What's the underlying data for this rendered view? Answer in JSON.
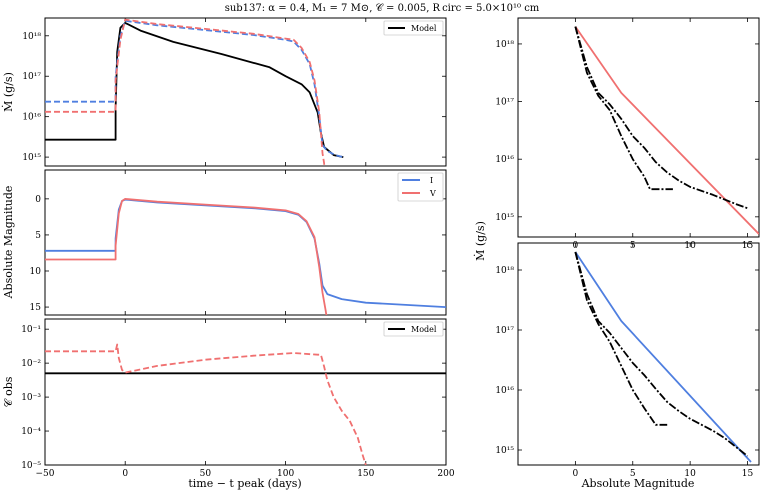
{
  "title": "sub137: α = 0.4, M₁ = 7 M⊙, 𝒞 = 0.005, R circ = 5.0×10¹⁰ cm",
  "chart_data": [
    {
      "id": "mdot_vs_time",
      "type": "line",
      "ylabel": "Ṁ (g/s)",
      "yscale": "log",
      "xlim": [
        -50,
        200
      ],
      "ylim_log10": [
        14.78,
        18.44
      ],
      "yticks": [
        "10¹⁵",
        "10¹⁶",
        "10¹⁷",
        "10¹⁸"
      ],
      "legend": [
        "Model"
      ],
      "series": [
        {
          "name": "Model",
          "color": "#000000",
          "dash": "",
          "points": [
            [
              -50,
              15.43
            ],
            [
              -6,
              15.43
            ],
            [
              -6,
              16.2
            ],
            [
              -5,
              17.6
            ],
            [
              -3,
              18.2
            ],
            [
              0,
              18.32
            ],
            [
              10,
              18.12
            ],
            [
              30,
              17.85
            ],
            [
              60,
              17.55
            ],
            [
              90,
              17.22
            ],
            [
              100,
              17.0
            ],
            [
              110,
              16.8
            ],
            [
              115,
              16.6
            ],
            [
              120,
              16.1
            ],
            [
              122,
              15.6
            ],
            [
              124,
              15.25
            ],
            [
              130,
              15.05
            ],
            [
              136,
              15.0
            ]
          ]
        },
        {
          "name": "I",
          "color": "#4f7fe0",
          "dash": "6,3",
          "points": [
            [
              -50,
              16.37
            ],
            [
              -6,
              16.37
            ],
            [
              -6,
              17.0
            ],
            [
              -3,
              18.0
            ],
            [
              0,
              18.37
            ],
            [
              20,
              18.26
            ],
            [
              50,
              18.14
            ],
            [
              80,
              18.02
            ],
            [
              100,
              17.9
            ],
            [
              105,
              17.86
            ],
            [
              110,
              17.65
            ],
            [
              115,
              17.3
            ],
            [
              118,
              16.8
            ],
            [
              121,
              16.0
            ],
            [
              123,
              15.3
            ],
            [
              126,
              15.15
            ],
            [
              131,
              15.05
            ],
            [
              136,
              15.0
            ]
          ]
        },
        {
          "name": "V",
          "color": "#f07070",
          "dash": "6,3",
          "points": [
            [
              -50,
              16.12
            ],
            [
              -6,
              16.12
            ],
            [
              -6,
              16.9
            ],
            [
              -3,
              17.9
            ],
            [
              0,
              18.4
            ],
            [
              20,
              18.29
            ],
            [
              50,
              18.17
            ],
            [
              80,
              18.05
            ],
            [
              100,
              17.93
            ],
            [
              105,
              17.9
            ],
            [
              110,
              17.7
            ],
            [
              115,
              17.35
            ],
            [
              118,
              16.9
            ],
            [
              121,
              16.1
            ],
            [
              122,
              15.6
            ],
            [
              123,
              15.1
            ],
            [
              124,
              14.85
            ],
            [
              124.5,
              14.6
            ]
          ]
        }
      ]
    },
    {
      "id": "absmag_vs_time",
      "type": "line",
      "ylabel": "Absolute Magnitude",
      "ylim": [
        16.1,
        -4.0
      ],
      "yticks": [
        "0",
        "5",
        "10",
        "15"
      ],
      "legend": [
        "I",
        "V"
      ],
      "series": [
        {
          "name": "I",
          "color": "#4f7fe0",
          "dash": "",
          "points": [
            [
              -50,
              7.2
            ],
            [
              -6,
              7.2
            ],
            [
              -6,
              5.5
            ],
            [
              -4,
              1.5
            ],
            [
              -2,
              0.3
            ],
            [
              0,
              0.1
            ],
            [
              20,
              0.5
            ],
            [
              50,
              0.9
            ],
            [
              80,
              1.3
            ],
            [
              100,
              1.7
            ],
            [
              108,
              2.2
            ],
            [
              113,
              3.2
            ],
            [
              118,
              5.5
            ],
            [
              121,
              9.0
            ],
            [
              123,
              12.0
            ],
            [
              126,
              13.2
            ],
            [
              135,
              13.9
            ],
            [
              150,
              14.4
            ],
            [
              175,
              14.7
            ],
            [
              200,
              15.0
            ]
          ]
        },
        {
          "name": "V",
          "color": "#f07070",
          "dash": "",
          "points": [
            [
              -50,
              8.4
            ],
            [
              -6,
              8.4
            ],
            [
              -6,
              6.5
            ],
            [
              -4,
              2.0
            ],
            [
              -2,
              0.3
            ],
            [
              0,
              0.0
            ],
            [
              20,
              0.4
            ],
            [
              50,
              0.8
            ],
            [
              80,
              1.2
            ],
            [
              100,
              1.6
            ],
            [
              108,
              2.1
            ],
            [
              113,
              3.1
            ],
            [
              118,
              5.3
            ],
            [
              121,
              9.5
            ],
            [
              123,
              13.0
            ],
            [
              125,
              15.5
            ],
            [
              126,
              17.0
            ]
          ]
        }
      ]
    },
    {
      "id": "cobs_vs_time",
      "type": "line",
      "ylabel": "𝒞 obs",
      "xlabel": "time − t peak (days)",
      "yscale": "log",
      "ylim_log10": [
        -5.0,
        -0.7
      ],
      "yticks": [
        "10⁻⁵",
        "10⁻⁴",
        "10⁻³",
        "10⁻²",
        "10⁻¹"
      ],
      "xticks": [
        "−50",
        "0",
        "50",
        "100",
        "150",
        "200"
      ],
      "legend": [
        "Model"
      ],
      "series": [
        {
          "name": "Model",
          "color": "#000000",
          "dash": "",
          "points": [
            [
              -50,
              -2.3
            ],
            [
              200,
              -2.3
            ]
          ]
        },
        {
          "name": "V",
          "color": "#f07070",
          "dash": "6,3",
          "points": [
            [
              -50,
              -1.65
            ],
            [
              -6,
              -1.65
            ],
            [
              -5,
              -1.45
            ],
            [
              -4,
              -1.85
            ],
            [
              -2,
              -2.2
            ],
            [
              0,
              -2.28
            ],
            [
              20,
              -2.08
            ],
            [
              50,
              -1.9
            ],
            [
              80,
              -1.78
            ],
            [
              105,
              -1.7
            ],
            [
              120,
              -1.75
            ],
            [
              122,
              -1.75
            ],
            [
              124,
              -2.1
            ],
            [
              126,
              -2.5
            ],
            [
              130,
              -3.0
            ],
            [
              135,
              -3.4
            ],
            [
              140,
              -3.7
            ],
            [
              145,
              -4.2
            ],
            [
              148,
              -4.7
            ],
            [
              150,
              -5.0
            ]
          ]
        }
      ]
    },
    {
      "id": "mdot_vs_mag_V",
      "type": "line",
      "xlim": [
        -5,
        16
      ],
      "ylim_log10": [
        14.65,
        18.45
      ],
      "xticks": [
        "0",
        "5",
        "10",
        "15"
      ],
      "yticks": [
        "10¹⁵",
        "10¹⁶",
        "10¹⁷",
        "10¹⁸"
      ],
      "series": [
        {
          "name": "V",
          "color": "#f07070",
          "dash": "",
          "points": [
            [
              0,
              18.3
            ],
            [
              4,
              17.15
            ],
            [
              16,
              14.7
            ]
          ]
        },
        {
          "name": "model-1",
          "color": "#000000",
          "dash": "8,2,2,2",
          "points": [
            [
              0,
              18.3
            ],
            [
              1,
              17.6
            ],
            [
              2,
              17.15
            ],
            [
              3,
              16.95
            ],
            [
              4,
              16.7
            ],
            [
              5,
              16.4
            ],
            [
              6,
              16.2
            ],
            [
              7,
              15.95
            ],
            [
              8,
              15.77
            ],
            [
              9,
              15.63
            ],
            [
              10,
              15.52
            ],
            [
              11,
              15.45
            ],
            [
              12,
              15.38
            ],
            [
              13,
              15.3
            ],
            [
              14,
              15.22
            ],
            [
              15,
              15.15
            ]
          ]
        },
        {
          "name": "model-2",
          "color": "#000000",
          "dash": "8,2,2,2",
          "points": [
            [
              0,
              18.3
            ],
            [
              1,
              17.5
            ],
            [
              2,
              17.1
            ],
            [
              3,
              16.85
            ],
            [
              4,
              16.4
            ],
            [
              5,
              16.0
            ],
            [
              6,
              15.7
            ],
            [
              6.5,
              15.48
            ],
            [
              8,
              15.48
            ],
            [
              8.5,
              15.48
            ]
          ]
        }
      ]
    },
    {
      "id": "mdot_vs_mag_I",
      "type": "line",
      "xlabel": "Absolute Magnitude",
      "xlim": [
        -5,
        16
      ],
      "ylim_log10": [
        14.75,
        18.45
      ],
      "xticks": [
        "0",
        "5",
        "10",
        "15"
      ],
      "yticks": [
        "10¹⁵",
        "10¹⁶",
        "10¹⁷",
        "10¹⁸"
      ],
      "series": [
        {
          "name": "I",
          "color": "#4f7fe0",
          "dash": "",
          "points": [
            [
              0,
              18.3
            ],
            [
              4,
              17.15
            ],
            [
              15.3,
              14.8
            ]
          ]
        },
        {
          "name": "model-1",
          "color": "#000000",
          "dash": "8,2,2,2",
          "points": [
            [
              0,
              18.3
            ],
            [
              1,
              17.6
            ],
            [
              2,
              17.15
            ],
            [
              3,
              16.95
            ],
            [
              4,
              16.7
            ],
            [
              5,
              16.45
            ],
            [
              6,
              16.25
            ],
            [
              7,
              16.02
            ],
            [
              8,
              15.8
            ],
            [
              9,
              15.65
            ],
            [
              10,
              15.52
            ],
            [
              11,
              15.42
            ],
            [
              12,
              15.32
            ],
            [
              13,
              15.2
            ],
            [
              14,
              15.05
            ],
            [
              15,
              14.9
            ]
          ]
        },
        {
          "name": "model-2",
          "color": "#000000",
          "dash": "8,2,2,2",
          "points": [
            [
              0,
              18.3
            ],
            [
              1,
              17.5
            ],
            [
              2,
              17.1
            ],
            [
              3,
              16.8
            ],
            [
              4,
              16.4
            ],
            [
              5,
              16.0
            ],
            [
              6,
              15.7
            ],
            [
              7,
              15.42
            ],
            [
              8,
              15.42
            ]
          ]
        }
      ]
    }
  ],
  "shared_ylabel_right": "Ṁ (g/s)"
}
